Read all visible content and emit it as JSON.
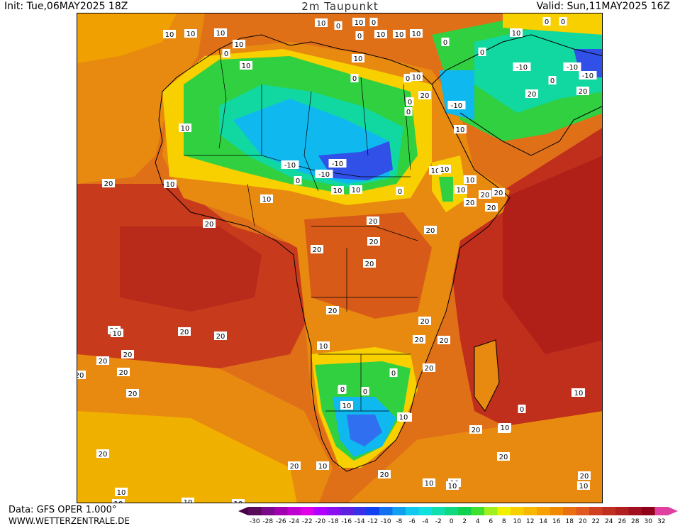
{
  "header": {
    "init": "Init: Tue,06MAY2025 18Z",
    "title": "2m Taupunkt",
    "valid": "Valid: Sun,11MAY2025 16Z"
  },
  "footer": {
    "data_source": "Data: GFS OPER 1.000°",
    "website": "WWW.WETTERZENTRALE.DE"
  },
  "legend": {
    "ticks": [
      "-30",
      "-28",
      "-26",
      "-24",
      "-22",
      "-20",
      "-18",
      "-16",
      "-14",
      "-12",
      "-10",
      "-8",
      "-6",
      "-4",
      "-2",
      "0",
      "2",
      "4",
      "6",
      "8",
      "10",
      "12",
      "14",
      "16",
      "18",
      "20",
      "22",
      "24",
      "26",
      "28",
      "30",
      "32"
    ],
    "colors": [
      "#5a0a5a",
      "#7a0a8a",
      "#a000b0",
      "#c000d0",
      "#e000e8",
      "#b000ff",
      "#8a10f0",
      "#6020e0",
      "#3a30e8",
      "#1040f0",
      "#1070f0",
      "#10a0f0",
      "#10c8f0",
      "#10e0e0",
      "#10e0b0",
      "#10d880",
      "#10d050",
      "#40e030",
      "#a0f020",
      "#f0f000",
      "#f8d000",
      "#f8b800",
      "#f8a000",
      "#f08800",
      "#e87010",
      "#e05820",
      "#d04020",
      "#c03020",
      "#b02020",
      "#a01020",
      "#900018",
      "#e040a0"
    ]
  },
  "map_labels": [
    {
      "text": "10"
    },
    {
      "text": "10"
    },
    {
      "text": "10"
    },
    {
      "text": "10"
    },
    {
      "text": "10"
    },
    {
      "text": "10"
    },
    {
      "text": "10"
    },
    {
      "text": "10"
    },
    {
      "text": "0"
    },
    {
      "text": "0"
    },
    {
      "text": "0"
    },
    {
      "text": "10"
    },
    {
      "text": "0"
    },
    {
      "text": "10"
    },
    {
      "text": "10"
    },
    {
      "text": "0"
    },
    {
      "text": "0"
    },
    {
      "text": "-10"
    },
    {
      "text": "-10"
    },
    {
      "text": "0"
    },
    {
      "text": "-10"
    },
    {
      "text": "20"
    },
    {
      "text": "0"
    },
    {
      "text": "0"
    },
    {
      "text": "10"
    },
    {
      "text": "0"
    },
    {
      "text": "0"
    },
    {
      "text": "20"
    },
    {
      "text": "10"
    },
    {
      "text": "0"
    },
    {
      "text": "0"
    },
    {
      "text": "-10"
    },
    {
      "text": "10"
    },
    {
      "text": "20"
    },
    {
      "text": "-10"
    },
    {
      "text": "-10"
    },
    {
      "text": "10"
    },
    {
      "text": "-10"
    },
    {
      "text": "0"
    },
    {
      "text": "10"
    },
    {
      "text": "10"
    },
    {
      "text": "10"
    },
    {
      "text": "0"
    },
    {
      "text": "10"
    },
    {
      "text": "20"
    },
    {
      "text": "10"
    },
    {
      "text": "10"
    },
    {
      "text": "20"
    },
    {
      "text": "10"
    },
    {
      "text": "10"
    },
    {
      "text": "20"
    },
    {
      "text": "20"
    },
    {
      "text": "20"
    },
    {
      "text": "20"
    },
    {
      "text": "20"
    },
    {
      "text": "20"
    },
    {
      "text": "20"
    },
    {
      "text": "20"
    },
    {
      "text": "20"
    },
    {
      "text": "20"
    },
    {
      "text": "20"
    },
    {
      "text": "20"
    },
    {
      "text": "20"
    },
    {
      "text": "10"
    },
    {
      "text": "20"
    },
    {
      "text": "20"
    },
    {
      "text": "20"
    },
    {
      "text": "20"
    },
    {
      "text": "20"
    },
    {
      "text": "20"
    },
    {
      "text": "20"
    },
    {
      "text": "20"
    },
    {
      "text": "20"
    },
    {
      "text": "0"
    },
    {
      "text": "0"
    },
    {
      "text": "0"
    },
    {
      "text": "0"
    },
    {
      "text": "0"
    },
    {
      "text": "10"
    },
    {
      "text": "20"
    },
    {
      "text": "20"
    },
    {
      "text": "20"
    },
    {
      "text": "20"
    },
    {
      "text": "20"
    },
    {
      "text": "10"
    },
    {
      "text": "10"
    },
    {
      "text": "10"
    },
    {
      "text": "10"
    },
    {
      "text": "10"
    },
    {
      "text": "10"
    },
    {
      "text": "10"
    },
    {
      "text": "10"
    },
    {
      "text": "10"
    },
    {
      "text": "10"
    },
    {
      "text": "10"
    },
    {
      "text": "20"
    },
    {
      "text": "20"
    },
    {
      "text": "20"
    },
    {
      "text": "20"
    },
    {
      "text": "10"
    },
    {
      "text": "10"
    }
  ]
}
